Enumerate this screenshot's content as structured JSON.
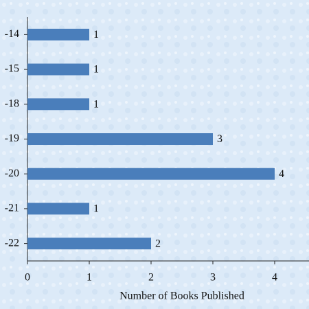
{
  "chart_data": {
    "type": "bar",
    "orientation": "horizontal",
    "categories": [
      "-14",
      "-15",
      "-18",
      "-19",
      "-20",
      "-21",
      "-22"
    ],
    "values": [
      1,
      1,
      1,
      3,
      4,
      1,
      2
    ],
    "color": "#4a7ebb",
    "xlabel": "Number of Books Published",
    "xlim": [
      0,
      4.5
    ],
    "xticks": [
      0,
      1,
      2,
      3,
      4
    ]
  }
}
